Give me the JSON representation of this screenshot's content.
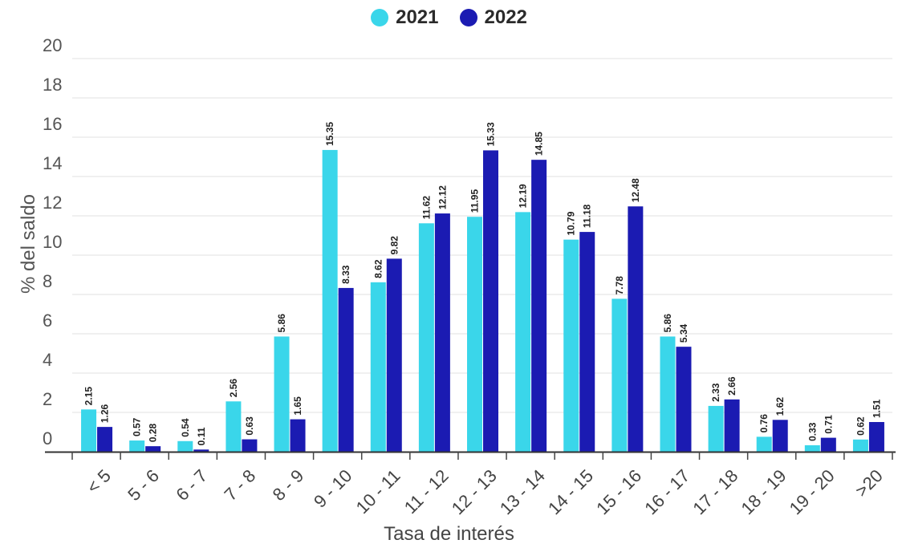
{
  "chart_data": {
    "type": "bar",
    "categories": [
      "< 5",
      "5 - 6",
      "6 - 7",
      "7 - 8",
      "8 - 9",
      "9 - 10",
      "10 - 11",
      "11 - 12",
      "12 - 13",
      "13 - 14",
      "14 - 15",
      "15 - 16",
      "16 - 17",
      "17 - 18",
      "18 - 19",
      "19 - 20",
      ">20"
    ],
    "series": [
      {
        "name": "2021",
        "color": "#3ad6ea",
        "values": [
          2.15,
          0.57,
          0.54,
          2.56,
          5.86,
          15.35,
          8.62,
          11.62,
          11.95,
          12.19,
          10.79,
          7.78,
          5.86,
          2.33,
          0.76,
          0.33,
          0.62
        ]
      },
      {
        "name": "2022",
        "color": "#1b1bb2",
        "values": [
          1.26,
          0.28,
          0.11,
          0.63,
          1.65,
          8.33,
          9.82,
          12.12,
          15.33,
          14.85,
          11.18,
          12.48,
          5.34,
          2.66,
          1.62,
          0.71,
          1.51
        ]
      }
    ],
    "data_labels": [
      [
        "2.15",
        "0.57",
        "0.54",
        "2.56",
        "5.86",
        "15.35",
        "8.62",
        "11.62",
        "11.95",
        "12.19",
        "10.79",
        "7.78",
        "5.86",
        "2.33",
        "0.76",
        "0.33",
        "0.62"
      ],
      [
        "1.26",
        "0.28",
        "0.11",
        "0.63",
        "1.65",
        "8.33",
        "9.82",
        "12.12",
        "15.33",
        "14.85",
        "11.18",
        "12.48",
        "5.34",
        "2.66",
        "1.62",
        "0.71",
        "1.51"
      ]
    ],
    "yticks": [
      "0",
      "2",
      "4",
      "6",
      "8",
      "10",
      "12",
      "14",
      "16",
      "18",
      "20"
    ],
    "ylim": [
      0,
      20
    ],
    "xlabel": "Tasa de interés",
    "ylabel": "% del saldo",
    "legend_position": "top-center",
    "grid": true
  }
}
